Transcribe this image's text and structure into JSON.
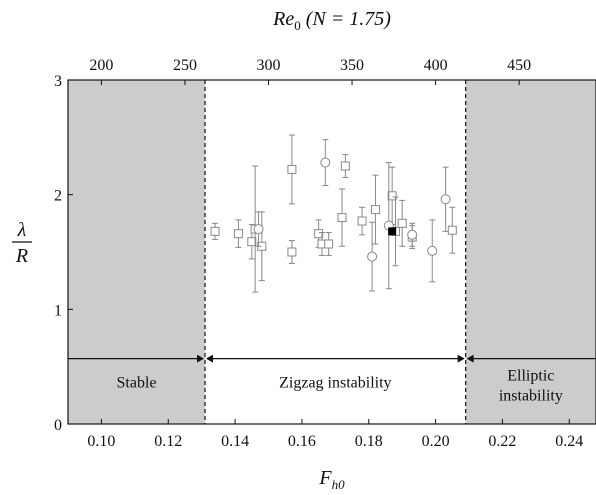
{
  "chart_data": {
    "type": "scatter",
    "title": "",
    "top_axis": {
      "label_main": "Re",
      "label_sub": "0",
      "label_suffix": " (N = 1.75)",
      "ticks": [
        200,
        250,
        300,
        350,
        400,
        450
      ],
      "fh0_per_re": 0.0005
    },
    "xlabel_main": "F",
    "xlabel_sub": "h0",
    "ylabel_num": "λ",
    "ylabel_den": "R",
    "xlim": [
      0.09,
      0.248
    ],
    "ylim": [
      0,
      3
    ],
    "xticks": [
      0.1,
      0.12,
      0.14,
      0.16,
      0.18,
      0.2,
      0.22,
      0.24
    ],
    "xtick_labels": [
      "0.10",
      "0.12",
      "0.14",
      "0.16",
      "0.18",
      "0.20",
      "0.22",
      "0.24"
    ],
    "yticks": [
      0,
      1,
      2,
      3
    ],
    "ytick_labels": [
      "0",
      "1",
      "2",
      "3"
    ],
    "boundaries": [
      0.131,
      0.209
    ],
    "regions": [
      {
        "label_lines": [
          "Stable"
        ],
        "x_range": [
          0.09,
          0.131
        ],
        "shaded": true
      },
      {
        "label_lines": [
          "Zigzag instability"
        ],
        "x_range": [
          0.131,
          0.209
        ],
        "shaded": false
      },
      {
        "label_lines": [
          "Elliptic",
          "instability"
        ],
        "x_range": [
          0.209,
          0.248
        ],
        "shaded": true
      }
    ],
    "arrow_y": 0.57,
    "colors": {
      "shade": "#cccccc",
      "marker": "#888888",
      "highlight": "#000000"
    },
    "series": [
      {
        "marker": "square",
        "points": [
          {
            "x": 0.134,
            "y": 1.68,
            "err": 0.07
          },
          {
            "x": 0.141,
            "y": 1.66,
            "err": 0.12
          },
          {
            "x": 0.145,
            "y": 1.59,
            "err": 0.15
          },
          {
            "x": 0.146,
            "y": 1.7,
            "err": 0.55
          },
          {
            "x": 0.148,
            "y": 1.55,
            "err": 0.3
          },
          {
            "x": 0.157,
            "y": 1.5,
            "err": 0.1
          },
          {
            "x": 0.157,
            "y": 2.22,
            "err": 0.3
          },
          {
            "x": 0.165,
            "y": 1.66,
            "err": 0.12
          },
          {
            "x": 0.166,
            "y": 1.57,
            "err": 0.1
          },
          {
            "x": 0.168,
            "y": 1.57,
            "err": 0.1
          },
          {
            "x": 0.172,
            "y": 1.8,
            "err": 0.25
          },
          {
            "x": 0.173,
            "y": 2.25,
            "err": 0.1
          },
          {
            "x": 0.178,
            "y": 1.77,
            "err": 0.12
          },
          {
            "x": 0.182,
            "y": 1.87,
            "err": 0.3
          },
          {
            "x": 0.187,
            "y": 1.99,
            "err": 0.25
          },
          {
            "x": 0.188,
            "y": 1.68,
            "err": 0.3
          },
          {
            "x": 0.19,
            "y": 1.75,
            "err": 0.2
          },
          {
            "x": 0.193,
            "y": 1.63,
            "err": 0.1
          },
          {
            "x": 0.205,
            "y": 1.69,
            "err": 0.2
          }
        ]
      },
      {
        "marker": "circle",
        "points": [
          {
            "x": 0.147,
            "y": 1.7,
            "err": 0.15
          },
          {
            "x": 0.167,
            "y": 2.28,
            "err": 0.2
          },
          {
            "x": 0.181,
            "y": 1.46,
            "err": 0.3
          },
          {
            "x": 0.186,
            "y": 1.73,
            "err": 0.55
          },
          {
            "x": 0.193,
            "y": 1.65,
            "err": 0.1
          },
          {
            "x": 0.199,
            "y": 1.51,
            "err": 0.27
          },
          {
            "x": 0.203,
            "y": 1.96,
            "err": 0.28
          }
        ]
      },
      {
        "marker": "filled-square",
        "points": [
          {
            "x": 0.187,
            "y": 1.68,
            "err": 0
          }
        ]
      }
    ]
  }
}
